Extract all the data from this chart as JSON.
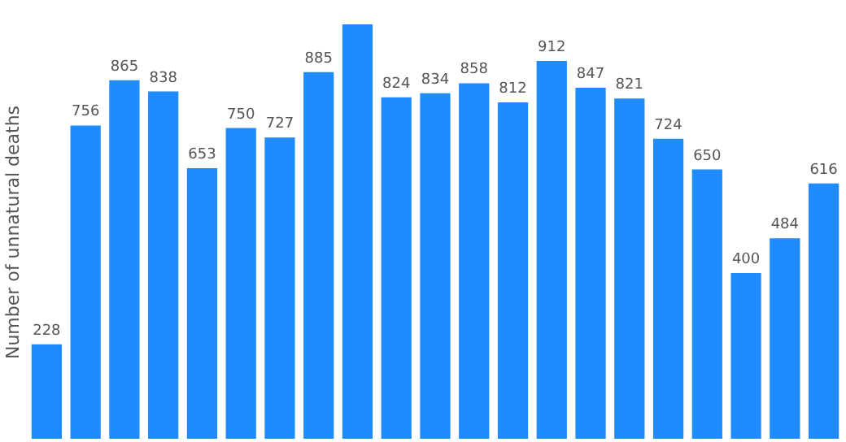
{
  "chart_data": {
    "type": "bar",
    "ylabel": "Number of unnatural deaths",
    "categories": [
      null,
      null,
      null,
      null,
      null,
      null,
      null,
      null,
      null,
      null,
      null,
      null,
      null,
      null,
      null,
      null,
      null,
      null,
      null,
      null,
      null
    ],
    "values": [
      228,
      756,
      865,
      838,
      653,
      750,
      727,
      885,
      1000,
      824,
      834,
      858,
      812,
      912,
      847,
      821,
      724,
      650,
      400,
      484,
      616
    ],
    "value_labels": [
      "228",
      "756",
      "865",
      "838",
      "653",
      "750",
      "727",
      "885",
      null,
      "824",
      "834",
      "858",
      "812",
      "912",
      "847",
      "821",
      "724",
      "650",
      "400",
      "484",
      "616"
    ],
    "color": "#1e8cff",
    "grid": false,
    "tick_labels": false
  }
}
